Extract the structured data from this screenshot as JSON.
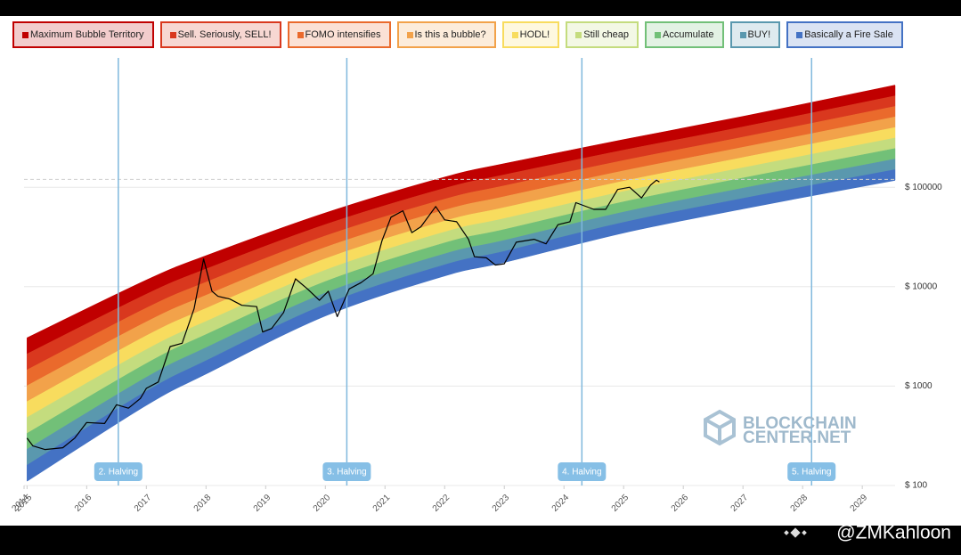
{
  "chart_data": {
    "type": "rainbow-line",
    "legend": [
      {
        "name": "Maximum Bubble Territory",
        "color": "#c00000"
      },
      {
        "name": "Sell. Seriously, SELL!",
        "color": "#d9381e"
      },
      {
        "name": "FOMO intensifies",
        "color": "#ea6a2c"
      },
      {
        "name": "Is this a bubble?",
        "color": "#f2a24a"
      },
      {
        "name": "HODL!",
        "color": "#f8dc5e"
      },
      {
        "name": "Still cheap",
        "color": "#c4dc7e"
      },
      {
        "name": "Accumulate",
        "color": "#72c078"
      },
      {
        "name": "BUY!",
        "color": "#5a98ae"
      },
      {
        "name": "Basically a Fire Sale",
        "color": "#4472c4"
      }
    ],
    "bands": {
      "x": [
        2015,
        2017,
        2018,
        2020,
        2022,
        2023,
        2025,
        2027,
        2029.55
      ],
      "bottom": [
        111,
        645,
        1330,
        5100,
        12900,
        17600,
        34900,
        61000,
        118000
      ],
      "top": [
        3040,
        11600,
        20400,
        55000,
        126000,
        172000,
        300000,
        513000,
        1060000
      ]
    },
    "price": {
      "color": "#000000",
      "x": [
        2015.0,
        2015.1,
        2015.3,
        2015.6,
        2015.8,
        2016.0,
        2016.3,
        2016.5,
        2016.7,
        2016.9,
        2017.0,
        2017.2,
        2017.4,
        2017.6,
        2017.8,
        2017.96,
        2018.1,
        2018.2,
        2018.4,
        2018.6,
        2018.85,
        2018.95,
        2019.1,
        2019.3,
        2019.5,
        2019.7,
        2019.9,
        2020.05,
        2020.2,
        2020.4,
        2020.6,
        2020.8,
        2020.95,
        2021.1,
        2021.3,
        2021.45,
        2021.6,
        2021.85,
        2022.0,
        2022.2,
        2022.4,
        2022.5,
        2022.7,
        2022.85,
        2023.0,
        2023.2,
        2023.5,
        2023.7,
        2023.9,
        2024.1,
        2024.2,
        2024.5,
        2024.7,
        2024.9,
        2025.1,
        2025.3,
        2025.45,
        2025.55,
        2025.6
      ],
      "values": [
        300,
        250,
        230,
        240,
        300,
        430,
        420,
        650,
        600,
        750,
        950,
        1100,
        2500,
        2700,
        6000,
        19000,
        9000,
        8000,
        7500,
        6500,
        6300,
        3500,
        3800,
        5500,
        12000,
        9500,
        7300,
        9000,
        5000,
        9500,
        11000,
        13500,
        29000,
        50000,
        58000,
        35000,
        40000,
        64000,
        47000,
        45000,
        30000,
        20000,
        19500,
        16500,
        17000,
        28000,
        30000,
        27000,
        42000,
        45000,
        70000,
        60000,
        60000,
        95000,
        100000,
        78000,
        105000,
        118000,
        113000
      ]
    },
    "reference_line": 120000,
    "halvings": [
      {
        "x": 2016.53,
        "label": "2. Halving"
      },
      {
        "x": 2020.36,
        "label": "3. Halving"
      },
      {
        "x": 2024.3,
        "label": "4. Halving"
      },
      {
        "x": 2028.15,
        "label": "5. Halving"
      }
    ],
    "xlim": [
      2014.95,
      2029.55
    ],
    "xticks": [
      {
        "value": 2014.95,
        "label": "2014"
      },
      2015,
      2016,
      2017,
      2018,
      2019,
      2020,
      2021,
      2022,
      2023,
      2024,
      2025,
      2026,
      2027,
      2028,
      2029
    ],
    "ylim": [
      100,
      2000000
    ],
    "log_y": true,
    "yticks": [
      {
        "value": 100,
        "label": "$ 100"
      },
      {
        "value": 1000,
        "label": "$ 1000"
      },
      {
        "value": 10000,
        "label": "$ 10000"
      },
      {
        "value": 100000,
        "label": "$ 100000"
      }
    ],
    "grid": true,
    "watermark": [
      "BLOCKCHAIN",
      "CENTER.NET"
    ]
  },
  "credit": "@ZMKahloon"
}
